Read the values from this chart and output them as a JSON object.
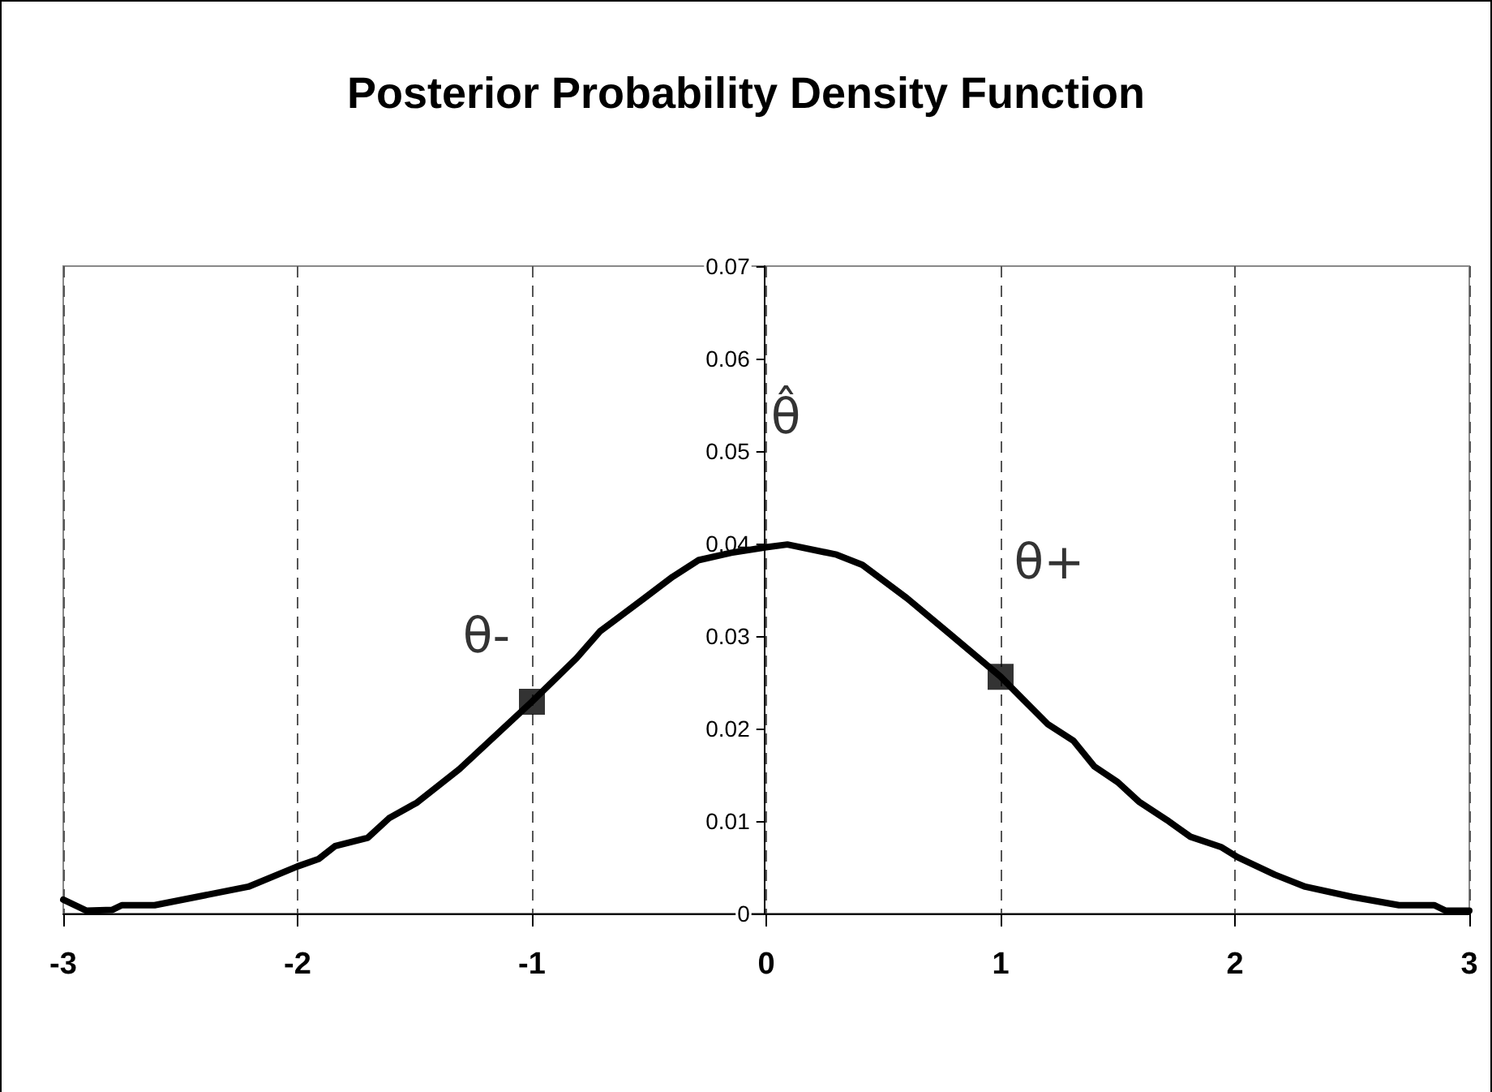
{
  "chart_data": {
    "type": "line",
    "title": "Posterior Probability Density Function",
    "series": [
      {
        "color": "#000000",
        "marker": "none",
        "line_style": "solid",
        "x": [
          -3,
          -2.9,
          -2.79,
          -2.75,
          -2.61,
          -2.21,
          -2,
          -1.91,
          -1.84,
          -1.7,
          -1.61,
          -1.49,
          -1.31,
          -1,
          -0.81,
          -0.71,
          -0.52,
          -0.4,
          -0.29,
          -0.15,
          0,
          0.09,
          0.3,
          0.41,
          0.6,
          0.78,
          1,
          1.09,
          1.2,
          1.31,
          1.4,
          1.5,
          1.59,
          1.71,
          1.81,
          1.94,
          2.01,
          2.17,
          2.3,
          2.5,
          2.7,
          2.85,
          2.9,
          3
        ],
        "values": [
          0.0015,
          0.0003,
          0.0004,
          0.0009,
          0.0009,
          0.0029,
          0.0051,
          0.0059,
          0.0073,
          0.0082,
          0.0103,
          0.012,
          0.0156,
          0.0229,
          0.0276,
          0.0305,
          0.0341,
          0.0364,
          0.0382,
          0.039,
          0.0396,
          0.0399,
          0.0388,
          0.0377,
          0.0341,
          0.0303,
          0.0256,
          0.0233,
          0.0205,
          0.0187,
          0.0159,
          0.0142,
          0.0121,
          0.0101,
          0.0083,
          0.0072,
          0.0061,
          0.0042,
          0.0029,
          0.0018,
          0.0009,
          0.0009,
          0.0003,
          0.0003
        ]
      },
      {
        "type": "scatter",
        "color": "#000000",
        "marker": "square",
        "x": [
          -1,
          1
        ],
        "values": [
          0.0229,
          0.0256
        ]
      }
    ],
    "annotations": [
      {
        "text": "θ-",
        "x": -1,
        "y": 0.0229
      },
      {
        "text": "θ̂",
        "x": 0,
        "y": 0.0396
      },
      {
        "text": "θ+",
        "x": 1,
        "y": 0.0256
      }
    ],
    "xlim": [
      -3,
      3
    ],
    "xticks": [
      -3,
      -2,
      -1,
      0,
      1,
      2,
      3
    ],
    "ylim": [
      0,
      0.07
    ],
    "yticks": [
      0,
      0.01,
      0.02,
      0.03,
      0.04,
      0.05,
      0.06,
      0.07
    ],
    "grid": "x"
  }
}
